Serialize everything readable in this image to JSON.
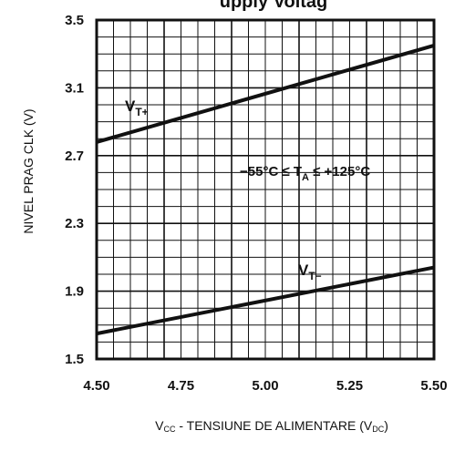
{
  "chart_data": {
    "type": "line",
    "title_fragment": "upply Voltag",
    "xlabel": {
      "pre": "V",
      "pre_sub": "CC",
      "main": " - TENSIUNE DE ALIMENTARE (V",
      "unit_sub": "DC",
      "post": ")"
    },
    "ylabel": "NIVEL PRAG CLK (V)",
    "x_ticks": [
      "4.50",
      "4.75",
      "5.00",
      "5.25",
      "5.50"
    ],
    "y_ticks": [
      "1.5",
      "1.9",
      "2.3",
      "2.7",
      "3.1",
      "3.5"
    ],
    "xlim": [
      4.5,
      5.5
    ],
    "ylim": [
      1.5,
      3.5
    ],
    "grid": true,
    "series": [
      {
        "name": "V",
        "name_sub": "T+",
        "x": [
          4.5,
          5.5
        ],
        "y": [
          2.78,
          3.35
        ]
      },
      {
        "name": "V",
        "name_sub": "T−",
        "x": [
          4.5,
          5.5
        ],
        "y": [
          1.65,
          2.04
        ]
      }
    ],
    "annotation": {
      "pre": "−55°C ≤ T",
      "sub": "A",
      "post": " ≤ +125°C"
    }
  }
}
